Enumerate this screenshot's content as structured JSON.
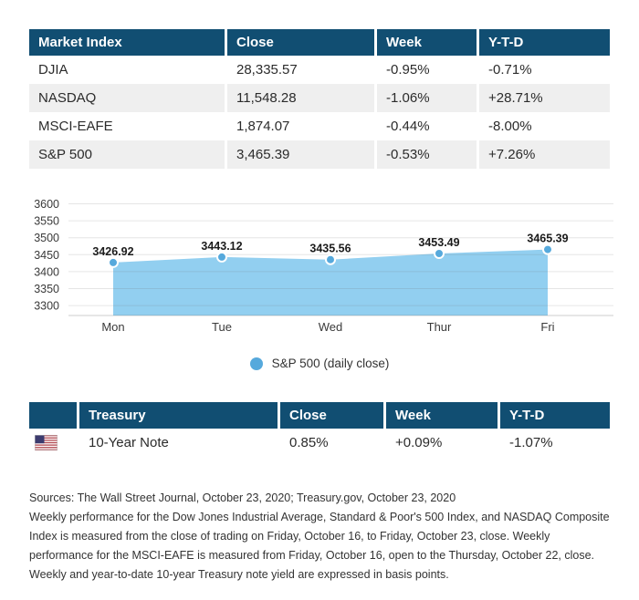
{
  "colors": {
    "header_bg": "#114e72",
    "row_alt": "#efefef",
    "area_fill": "#92cff0",
    "marker": "#56a9dc",
    "grid": "#6e6e6e",
    "text_dark": "#1b1b1b",
    "tick_text": "#3a3a3a"
  },
  "market_table": {
    "headers": [
      "Market Index",
      "Close",
      "Week",
      "Y-T-D"
    ],
    "rows": [
      {
        "index": "DJIA",
        "close": "28,335.57",
        "week": "-0.95%",
        "ytd": "-0.71%"
      },
      {
        "index": "NASDAQ",
        "close": "11,548.28",
        "week": "-1.06%",
        "ytd": "+28.71%"
      },
      {
        "index": "MSCI-EAFE",
        "close": "1,874.07",
        "week": "-0.44%",
        "ytd": "-8.00%"
      },
      {
        "index": "S&P 500",
        "close": "3,465.39",
        "week": "-0.53%",
        "ytd": "+7.26%"
      }
    ]
  },
  "chart_data": {
    "type": "area",
    "categories": [
      "Mon",
      "Tue",
      "Wed",
      "Thur",
      "Fri"
    ],
    "values": [
      3426.92,
      3443.12,
      3435.56,
      3453.49,
      3465.39
    ],
    "value_labels": [
      "3426.92",
      "3443.12",
      "3435.56",
      "3453.49",
      "3465.39"
    ],
    "y_ticks": [
      3600,
      3550,
      3500,
      3450,
      3400,
      3350,
      3300
    ],
    "ylim": [
      3270,
      3600
    ],
    "grid": true,
    "legend": "S&P 500 (daily close)",
    "legend_position": "bottom-center",
    "title": "",
    "xlabel": "",
    "ylabel": ""
  },
  "treasury_table": {
    "headers": [
      "",
      "Treasury",
      "Close",
      "Week",
      "Y-T-D"
    ],
    "rows": [
      {
        "flag": "us-flag",
        "name": "10-Year Note",
        "close": "0.85%",
        "week": "+0.09%",
        "ytd": "-1.07%"
      }
    ]
  },
  "footer": {
    "sources": "Sources: The Wall Street Journal, October 23, 2020; Treasury.gov, October 23, 2020",
    "note": "Weekly performance for the Dow Jones Industrial Average, Standard & Poor's 500 Index, and NASDAQ Composite Index is measured from the close of trading on Friday, October 16, to Friday, October 23, close. Weekly performance for the MSCI-EAFE is measured from Friday, October 16, open to the Thursday, October 22, close. Weekly and year-to-date 10-year Treasury note yield are expressed in basis points."
  }
}
